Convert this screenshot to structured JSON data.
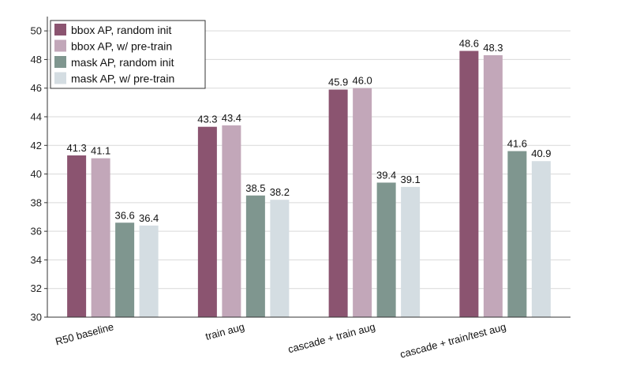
{
  "chart_data": {
    "type": "bar",
    "title": "",
    "xlabel": "",
    "ylabel": "",
    "categories": [
      "R50 baseline",
      "train aug",
      "cascade + train aug",
      "cascade + train/test aug"
    ],
    "series": [
      {
        "name": "bbox AP, random init",
        "color": "#8b5470",
        "values": [
          41.3,
          43.3,
          45.9,
          48.6
        ]
      },
      {
        "name": "bbox AP, w/ pre-train",
        "color": "#c2a7b9",
        "values": [
          41.1,
          43.4,
          46.0,
          48.3
        ]
      },
      {
        "name": "mask AP, random init",
        "color": "#7f968f",
        "values": [
          36.6,
          38.5,
          39.4,
          41.6
        ]
      },
      {
        "name": "mask AP, w/ pre-train",
        "color": "#d4dde2",
        "values": [
          36.4,
          38.2,
          39.1,
          40.9
        ]
      }
    ],
    "ylim": [
      30,
      51
    ],
    "yticks": [
      30,
      32,
      34,
      36,
      38,
      40,
      42,
      44,
      46,
      48,
      50
    ],
    "grid": true,
    "legend": "top-left"
  }
}
